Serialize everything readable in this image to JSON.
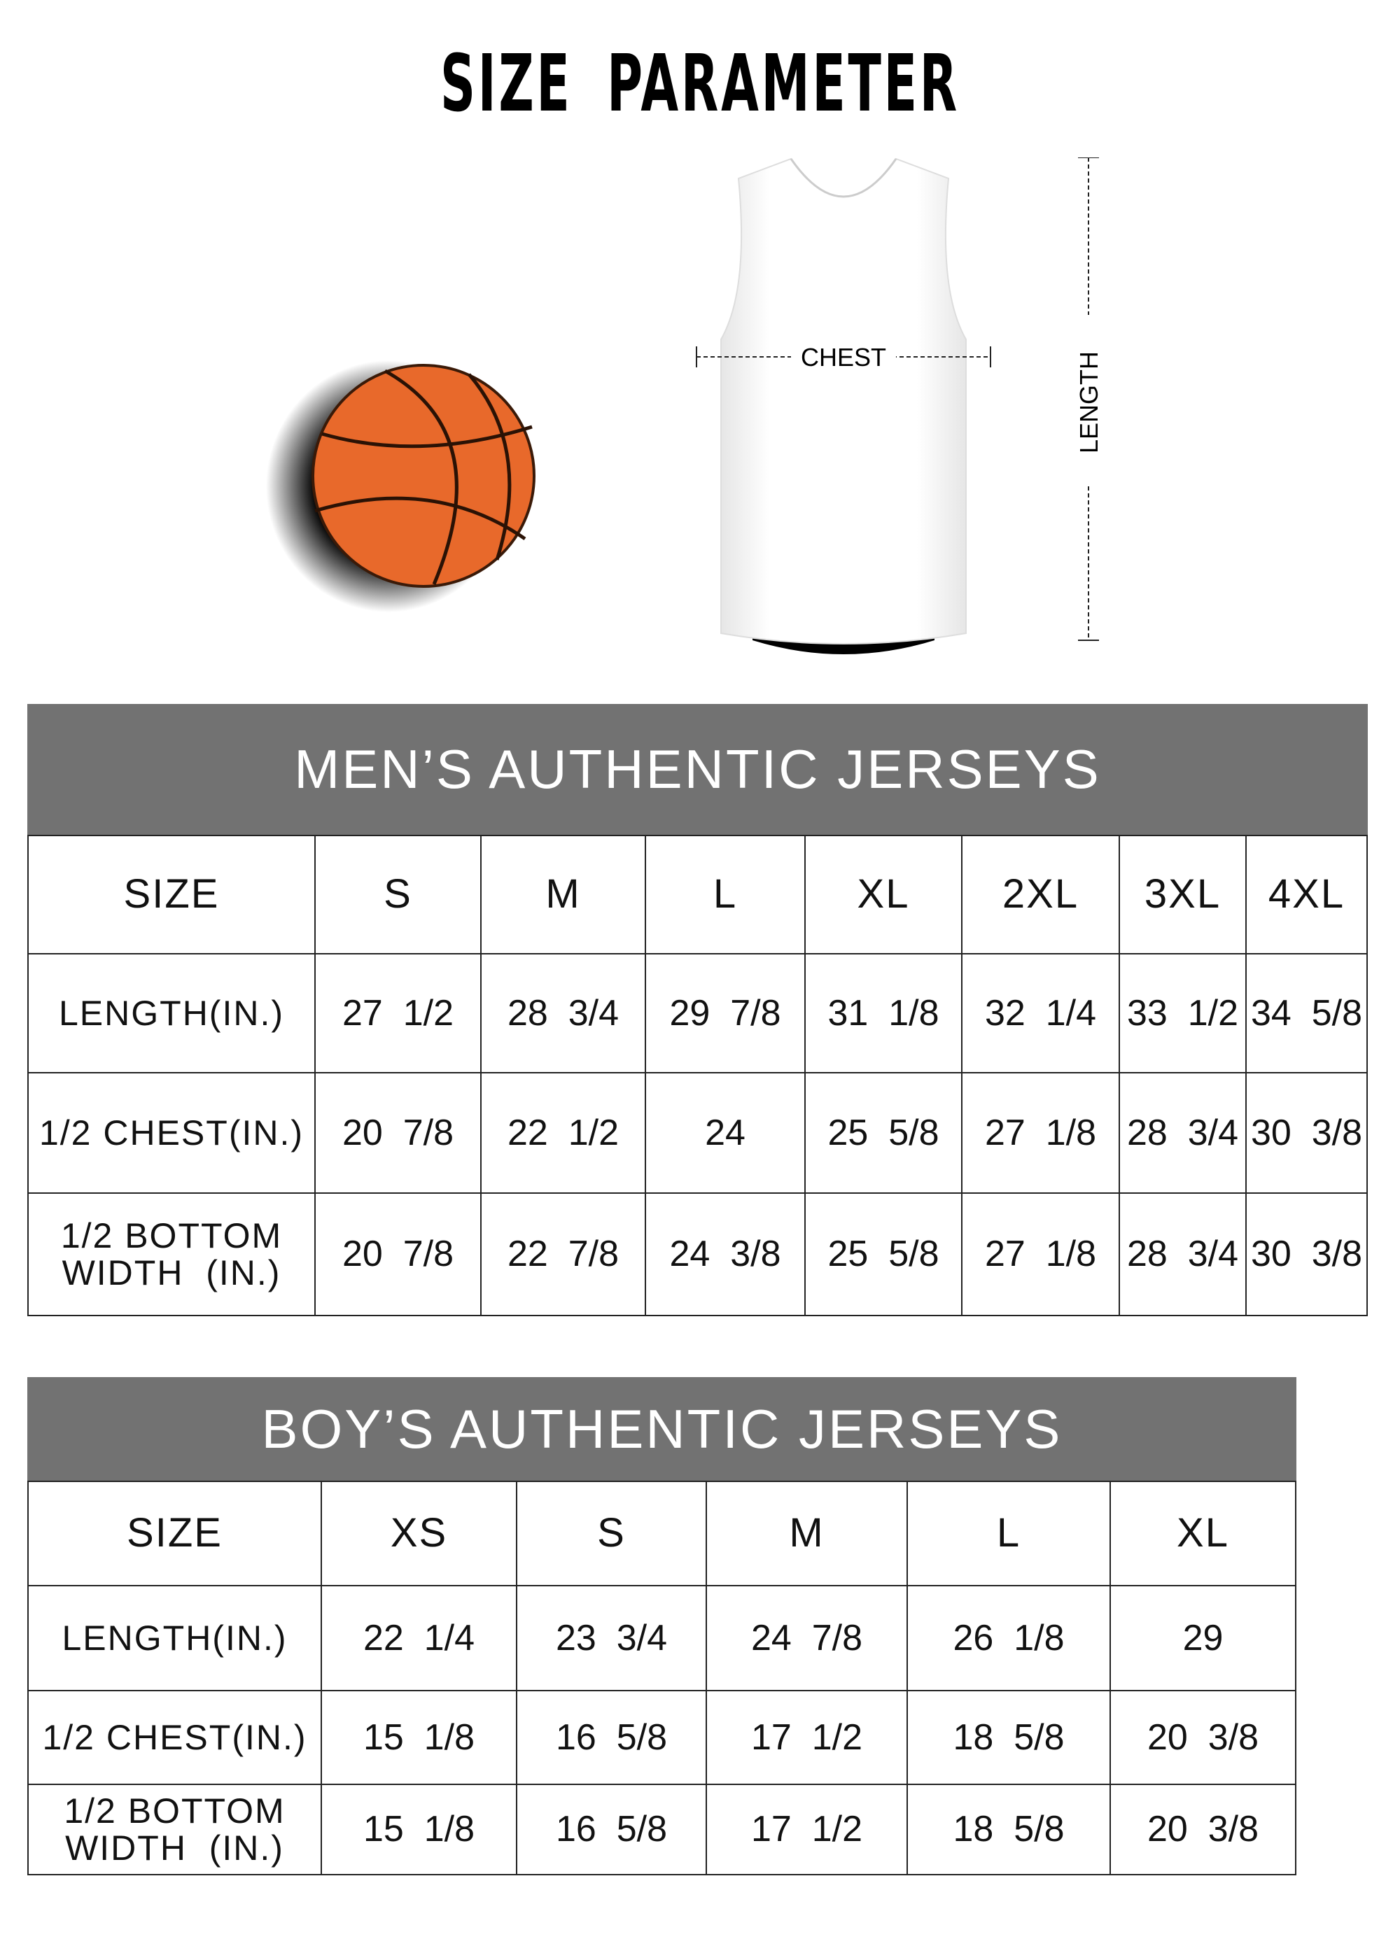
{
  "title": {
    "word1": "SIZE",
    "word2": "PARAMETER"
  },
  "diagram": {
    "chest_label": "CHEST",
    "length_label": "LENGTH",
    "ball_color": "#e8692b"
  },
  "colors": {
    "header_bg": "#727272",
    "header_text": "#ffffff"
  },
  "mens_table": {
    "heading": "MEN’S AUTHENTIC JERSEYS",
    "columns": [
      "SIZE",
      "S",
      "M",
      "L",
      "XL",
      "2XL",
      "3XL",
      "4XL"
    ],
    "rows": [
      {
        "label": "LENGTH(IN.)",
        "values": [
          "27  1/2",
          "28  3/4",
          "29  7/8",
          "31  1/8",
          "32  1/4",
          "33  1/2",
          "34  5/8"
        ]
      },
      {
        "label": "1/2 CHEST(IN.)",
        "values": [
          "20  7/8",
          "22  1/2",
          "24",
          "25  5/8",
          "27  1/8",
          "28  3/4",
          "30  3/8"
        ]
      },
      {
        "label": "1/2 BOTTOM WIDTH  (IN.)",
        "values": [
          "20  7/8",
          "22  7/8",
          "24  3/8",
          "25  5/8",
          "27  1/8",
          "28  3/4",
          "30  3/8"
        ]
      }
    ]
  },
  "boys_table": {
    "heading": "BOY’S AUTHENTIC JERSEYS",
    "columns": [
      "SIZE",
      "XS",
      "S",
      "M",
      "L",
      "XL"
    ],
    "rows": [
      {
        "label": "LENGTH(IN.)",
        "values": [
          "22  1/4",
          "23  3/4",
          "24  7/8",
          "26  1/8",
          "29"
        ]
      },
      {
        "label": "1/2 CHEST(IN.)",
        "values": [
          "15  1/8",
          "16  5/8",
          "17  1/2",
          "18  5/8",
          "20  3/8"
        ]
      },
      {
        "label": "1/2 BOTTOM WIDTH  (IN.)",
        "values": [
          "15  1/8",
          "16  5/8",
          "17  1/2",
          "18  5/8",
          "20  3/8"
        ]
      }
    ]
  }
}
